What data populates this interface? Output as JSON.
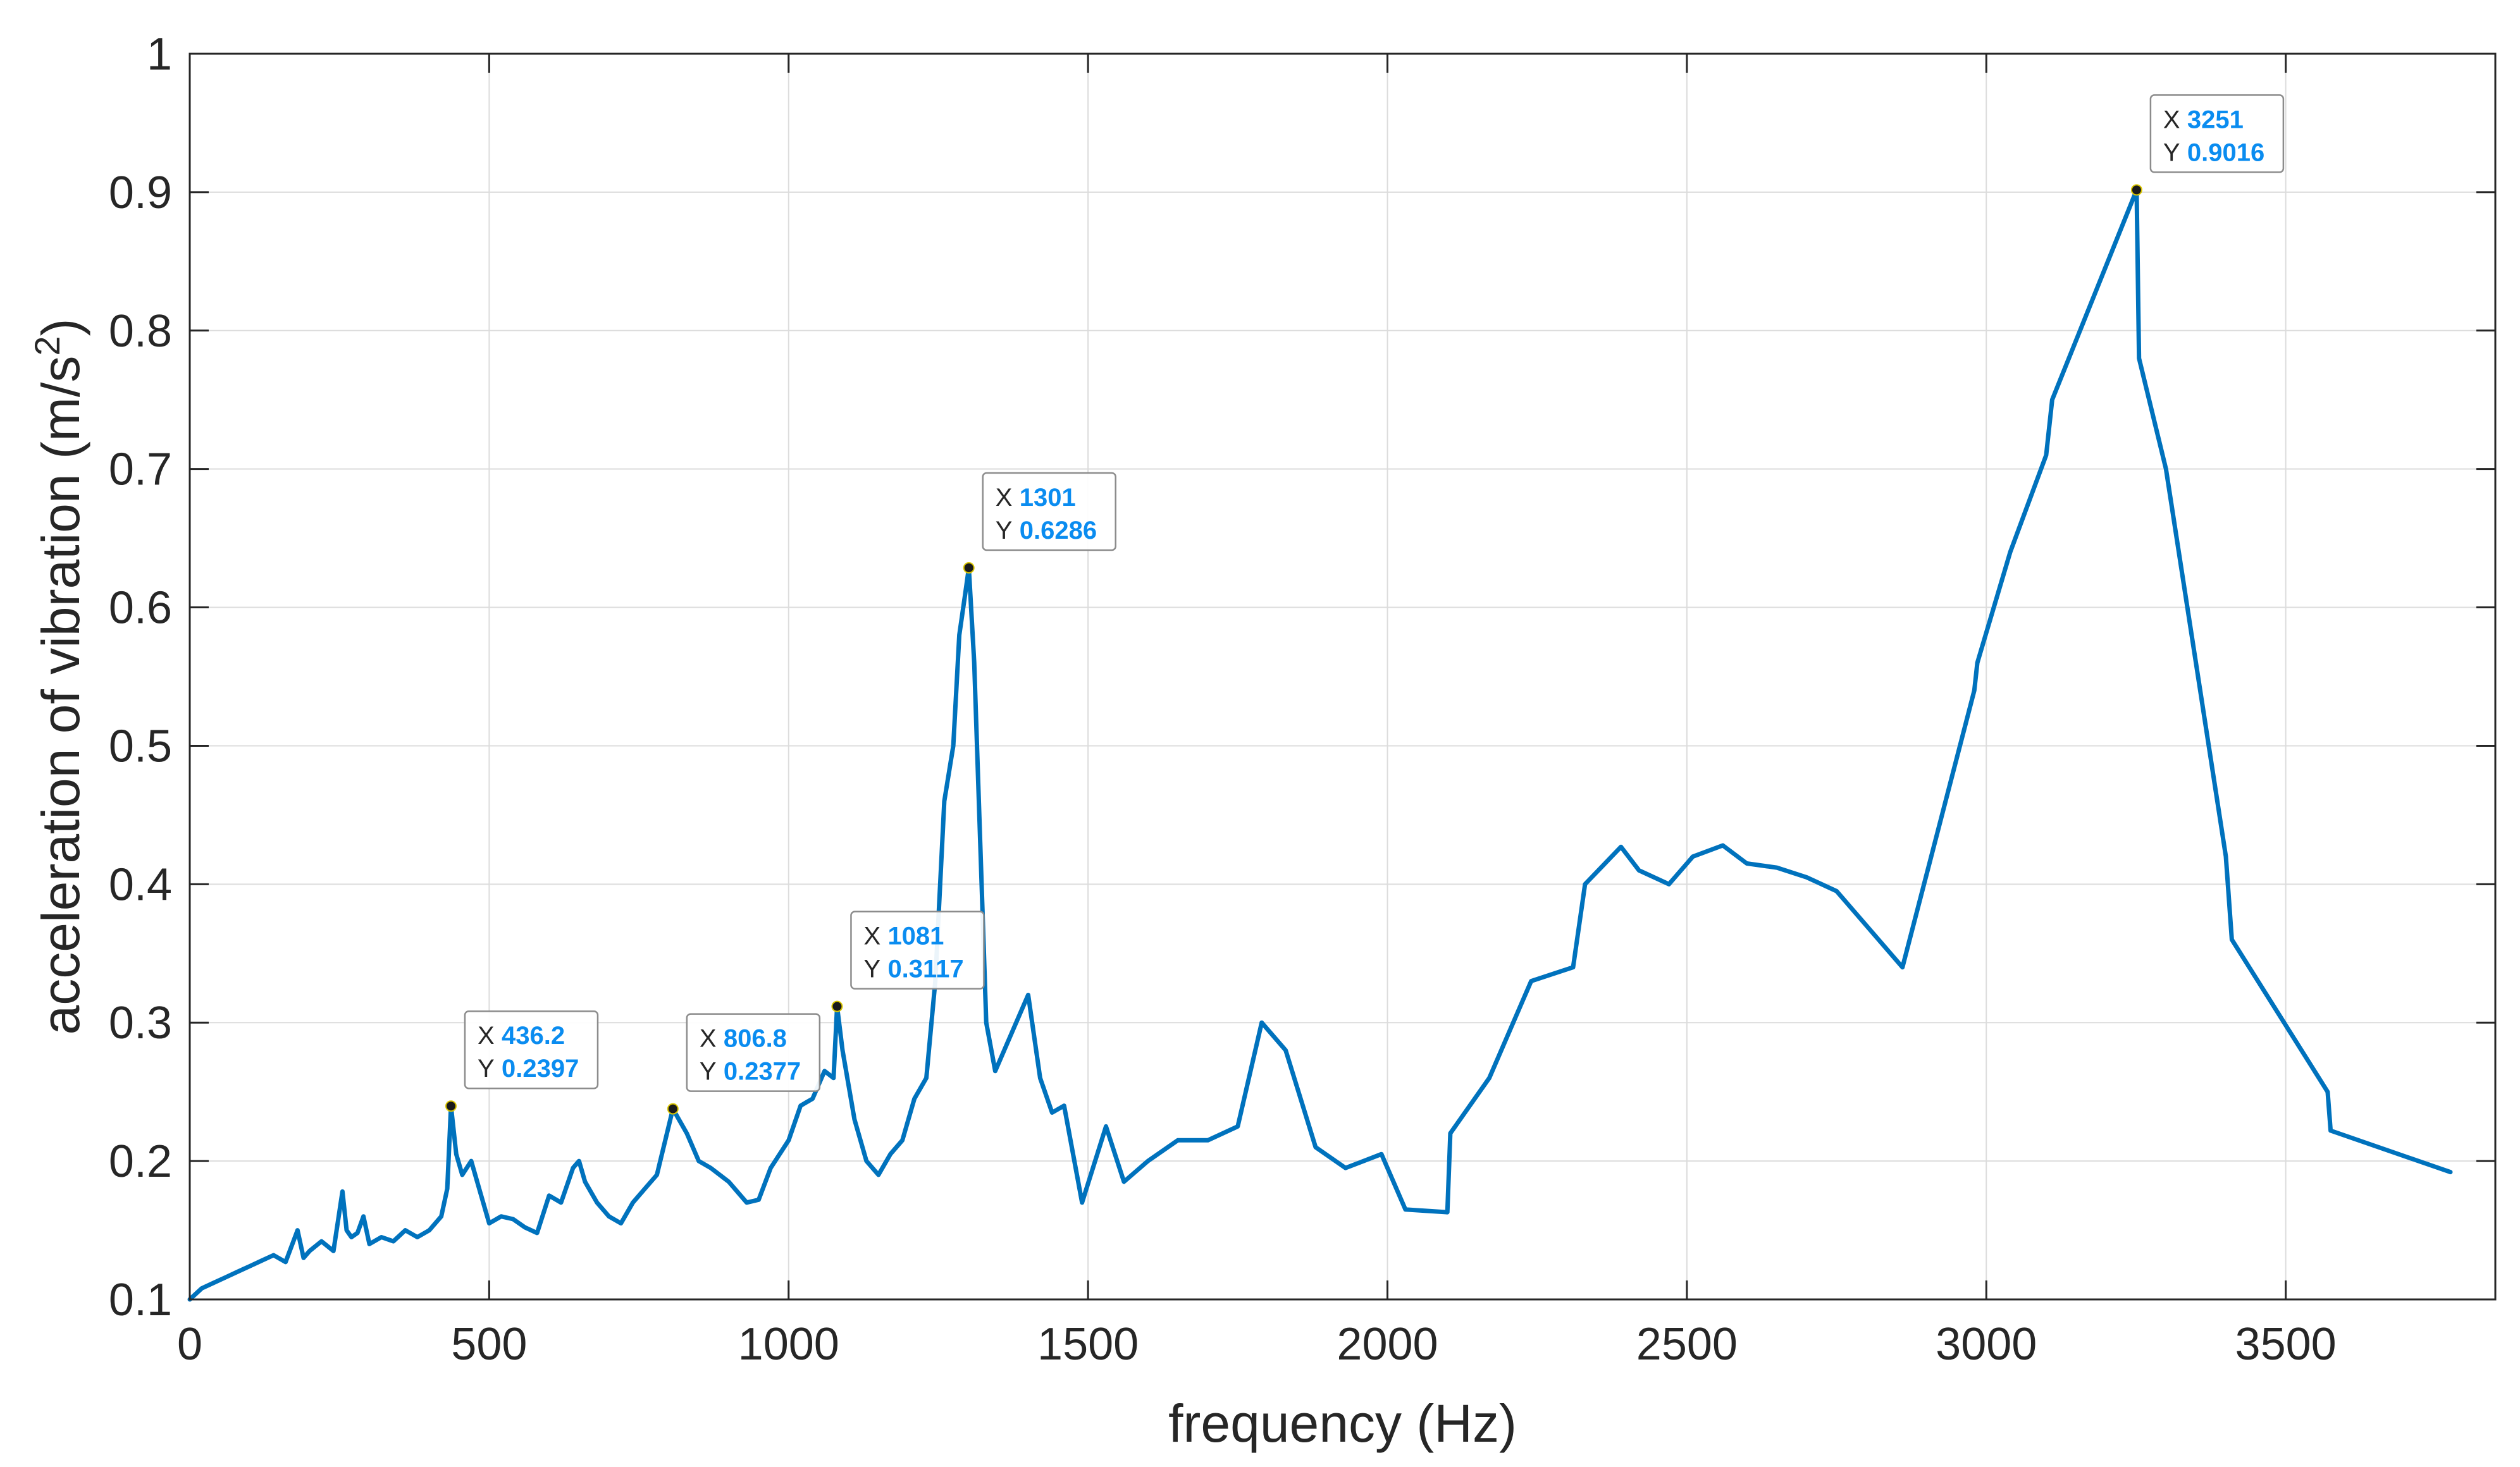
{
  "chart_data": {
    "type": "line",
    "xlabel": "frequency (Hz)",
    "ylabel": "acceleration of vibration (m/s",
    "ylabel_sup": "2",
    "ylabel_end": ")",
    "xlim": [
      0,
      3850
    ],
    "ylim": [
      0.1,
      1.0
    ],
    "xticks": [
      0,
      500,
      1000,
      1500,
      2000,
      2500,
      3000,
      3500
    ],
    "xtick_labels": [
      "0",
      "500",
      "1000",
      "1500",
      "2000",
      "2500",
      "3000",
      "3500"
    ],
    "yticks": [
      0.1,
      0.2,
      0.3,
      0.4,
      0.5,
      0.6,
      0.7,
      0.8,
      0.9,
      1.0
    ],
    "ytick_labels": [
      "0.1",
      "0.2",
      "0.3",
      "0.4",
      "0.5",
      "0.6",
      "0.7",
      "0.8",
      "0.9",
      "1"
    ],
    "grid": true,
    "line_color": "#0072BD",
    "series": [
      {
        "x": [
          0,
          20,
          40,
          60,
          80,
          100,
          120,
          140,
          160,
          180,
          190,
          200,
          220,
          240,
          255,
          262,
          270,
          280,
          290,
          300,
          320,
          340,
          360,
          380,
          400,
          420,
          430,
          436.2,
          445,
          455,
          470,
          480,
          490,
          500,
          520,
          540,
          560,
          580,
          600,
          620,
          640,
          650,
          660,
          680,
          700,
          720,
          740,
          760,
          780,
          806.8,
          830,
          850,
          870,
          900,
          930,
          950,
          970,
          1000,
          1020,
          1040,
          1060,
          1075,
          1081,
          1090,
          1110,
          1130,
          1150,
          1170,
          1190,
          1210,
          1230,
          1245,
          1260,
          1275,
          1285,
          1295,
          1301,
          1310,
          1320,
          1330,
          1345,
          1360,
          1380,
          1400,
          1420,
          1440,
          1460,
          1490,
          1530,
          1560,
          1600,
          1650,
          1700,
          1750,
          1790,
          1830,
          1880,
          1930,
          1990,
          2030,
          2100,
          2105,
          2170,
          2240,
          2310,
          2330,
          2390,
          2420,
          2470,
          2510,
          2560,
          2600,
          2650,
          2700,
          2750,
          2860,
          2980,
          2985,
          3040,
          3100,
          3110,
          3251,
          3255,
          3300,
          3400,
          3410,
          3570,
          3575,
          3775
        ],
        "y": [
          0.1,
          0.108,
          0.112,
          0.116,
          0.12,
          0.124,
          0.128,
          0.132,
          0.127,
          0.15,
          0.13,
          0.135,
          0.142,
          0.135,
          0.178,
          0.15,
          0.145,
          0.148,
          0.16,
          0.14,
          0.145,
          0.142,
          0.15,
          0.145,
          0.15,
          0.16,
          0.18,
          0.2397,
          0.205,
          0.19,
          0.2,
          0.185,
          0.17,
          0.155,
          0.16,
          0.158,
          0.152,
          0.148,
          0.175,
          0.17,
          0.195,
          0.2,
          0.185,
          0.17,
          0.16,
          0.155,
          0.17,
          0.18,
          0.19,
          0.2377,
          0.22,
          0.2,
          0.195,
          0.185,
          0.17,
          0.172,
          0.195,
          0.215,
          0.24,
          0.245,
          0.265,
          0.26,
          0.3117,
          0.28,
          0.23,
          0.2,
          0.19,
          0.205,
          0.215,
          0.245,
          0.26,
          0.33,
          0.46,
          0.5,
          0.58,
          0.61,
          0.6286,
          0.56,
          0.43,
          0.3,
          0.265,
          0.28,
          0.3,
          0.32,
          0.26,
          0.235,
          0.24,
          0.17,
          0.225,
          0.185,
          0.2,
          0.215,
          0.215,
          0.225,
          0.3,
          0.28,
          0.21,
          0.195,
          0.205,
          0.165,
          0.163,
          0.22,
          0.26,
          0.33,
          0.34,
          0.4,
          0.427,
          0.41,
          0.4,
          0.42,
          0.428,
          0.415,
          0.412,
          0.405,
          0.395,
          0.34,
          0.54,
          0.56,
          0.64,
          0.71,
          0.75,
          0.9016,
          0.78,
          0.7,
          0.42,
          0.36,
          0.25,
          0.222,
          0.192
        ]
      }
    ],
    "datatips": [
      {
        "key_x": "X",
        "key_y": "Y",
        "x": 436.2,
        "y": 0.2397,
        "x_text": "436.2",
        "y_text": "0.2397"
      },
      {
        "key_x": "X",
        "key_y": "Y",
        "x": 806.8,
        "y": 0.2377,
        "x_text": "806.8",
        "y_text": "0.2377"
      },
      {
        "key_x": "X",
        "key_y": "Y",
        "x": 1081,
        "y": 0.3117,
        "x_text": "1081",
        "y_text": "0.3117"
      },
      {
        "key_x": "X",
        "key_y": "Y",
        "x": 1301,
        "y": 0.6286,
        "x_text": "1301",
        "y_text": "0.6286"
      },
      {
        "key_x": "X",
        "key_y": "Y",
        "x": 3251,
        "y": 0.9016,
        "x_text": "3251",
        "y_text": "0.9016"
      }
    ]
  }
}
